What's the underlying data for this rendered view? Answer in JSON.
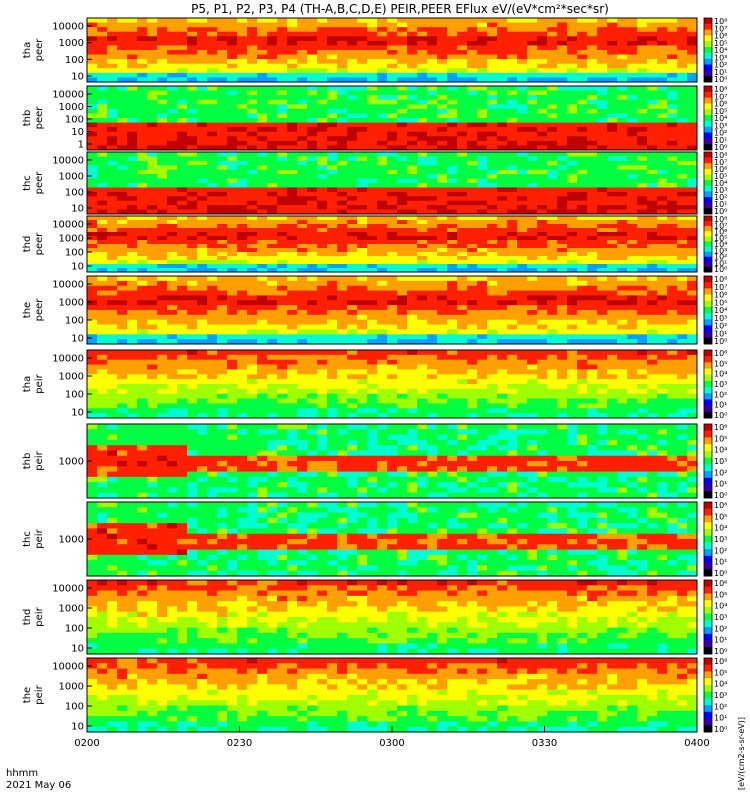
{
  "chart_data": {
    "type": "heatmap",
    "title": "P5, P1, P2, P3, P4 (TH-A,B,C,D,E) PEIR,PEER EFlux eV/(eV*cm²*sec*sr)",
    "colorbar_label": "[eV/(cm2-s-sr-eV)]",
    "x_ticks": [
      "0200",
      "0230",
      "0300",
      "0330",
      "0400"
    ],
    "x_annotation": {
      "label": "hhmm",
      "date": "2021 May 06"
    },
    "panels": [
      {
        "probe": "tha",
        "species": "peer",
        "y_ticks": [
          "10000",
          "1000",
          "100",
          "10"
        ],
        "cbar_ticks": [
          "10⁸",
          "10⁷",
          "10⁶",
          "10⁵",
          "10⁴",
          "10³",
          "10²",
          "10¹",
          "10⁰"
        ]
      },
      {
        "probe": "thb",
        "species": "peer",
        "y_ticks": [
          "10000",
          "1000",
          "100",
          "10",
          "1"
        ],
        "cbar_ticks": [
          "10⁸",
          "10⁷",
          "10⁶",
          "10⁵",
          "10⁴",
          "10³",
          "10²",
          "10¹",
          "10⁰"
        ]
      },
      {
        "probe": "thc",
        "species": "peer",
        "y_ticks": [
          "10000",
          "1000",
          "100",
          "10"
        ],
        "cbar_ticks": [
          "10⁸",
          "10⁷",
          "10⁶",
          "10⁵",
          "10⁴",
          "10³",
          "10²",
          "10¹",
          "10⁰"
        ]
      },
      {
        "probe": "thd",
        "species": "peer",
        "y_ticks": [
          "10000",
          "1000",
          "100",
          "10"
        ],
        "cbar_ticks": [
          "10⁸",
          "10⁷",
          "10⁶",
          "10⁵",
          "10⁴",
          "10³",
          "10²",
          "10¹",
          "10⁰"
        ]
      },
      {
        "probe": "the",
        "species": "peer",
        "y_ticks": [
          "10000",
          "1000",
          "100",
          "10"
        ],
        "cbar_ticks": [
          "10⁸",
          "10⁷",
          "10⁶",
          "10⁵",
          "10⁴",
          "10³",
          "10²",
          "10¹",
          "10⁰"
        ]
      },
      {
        "probe": "tha",
        "species": "peir",
        "y_ticks": [
          "10000",
          "1000",
          "100",
          "10"
        ],
        "cbar_ticks": [
          "10⁶",
          "10⁵",
          "10⁴",
          "10³",
          "10²",
          "10¹",
          "10⁰"
        ]
      },
      {
        "probe": "thb",
        "species": "peir",
        "y_ticks": [
          "1000"
        ],
        "cbar_ticks": [
          "10⁶",
          "10⁵",
          "10⁴",
          "10³",
          "10²",
          "10¹",
          "10⁰"
        ]
      },
      {
        "probe": "thc",
        "species": "peir",
        "y_ticks": [
          "1000"
        ],
        "cbar_ticks": [
          "10⁶",
          "10⁵",
          "10⁴",
          "10³",
          "10²",
          "10¹",
          "10⁰"
        ]
      },
      {
        "probe": "thd",
        "species": "peir",
        "y_ticks": [
          "10000",
          "1000",
          "100",
          "10"
        ],
        "cbar_ticks": [
          "10⁶",
          "10⁵",
          "10⁴",
          "10³",
          "10²",
          "10¹",
          "10⁰"
        ]
      },
      {
        "probe": "the",
        "species": "peir",
        "y_ticks": [
          "10000",
          "1000",
          "100",
          "10"
        ],
        "cbar_ticks": [
          "10⁶",
          "10⁵",
          "10⁴",
          "10³",
          "10²",
          "10¹",
          "10⁰"
        ]
      }
    ],
    "colormap": [
      "#000000",
      "#3a00a0",
      "#0000ff",
      "#00a0ff",
      "#00ffd0",
      "#00ff40",
      "#a0ff00",
      "#ffff00",
      "#ffa000",
      "#ff2000",
      "#c00000"
    ]
  }
}
